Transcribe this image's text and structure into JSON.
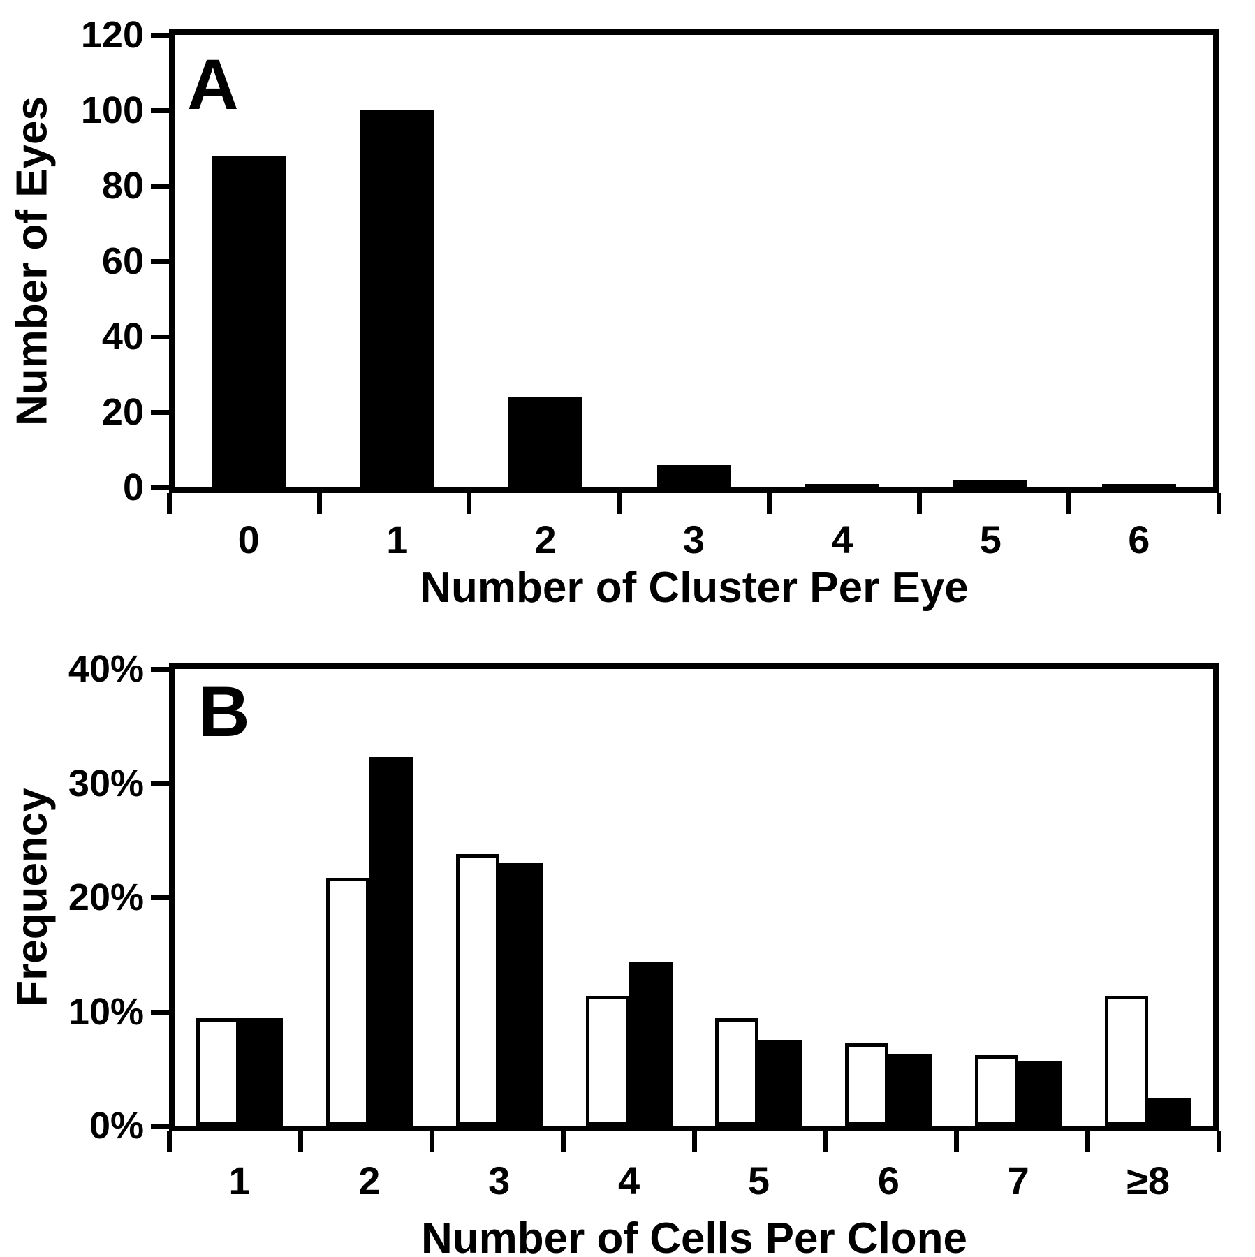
{
  "figure_title": "Two-panel published bar chart figure",
  "panels": {
    "a": {
      "letter": "A",
      "y_title": "Number of Eyes",
      "x_title": "Number of Cluster Per Eye"
    },
    "b": {
      "letter": "B",
      "y_title": "Frequency",
      "x_title": "Number of Cells Per Clone"
    }
  },
  "chart_data": [
    {
      "panel": "A",
      "type": "bar",
      "title": "A",
      "categories": [
        "0",
        "1",
        "2",
        "3",
        "4",
        "5",
        "6"
      ],
      "values": [
        88,
        100,
        24,
        6,
        1,
        2,
        1
      ],
      "xlabel": "Number of Cluster Per Eye",
      "ylabel": "Number of Eyes",
      "ylim": [
        0,
        120
      ],
      "y_ticks": [
        0,
        20,
        40,
        60,
        80,
        100,
        120
      ],
      "y_tick_suffix": "",
      "bar_fill": "#000000",
      "grid": false,
      "legend": "none"
    },
    {
      "panel": "B",
      "type": "bar",
      "title": "B",
      "categories": [
        "1",
        "2",
        "3",
        "4",
        "5",
        "6",
        "7",
        "≥8"
      ],
      "series": [
        {
          "name": "open-white-bars",
          "fill": "#ffffff",
          "values": [
            9.4,
            21.7,
            23.8,
            11.4,
            9.4,
            7.2,
            6.2,
            11.4
          ]
        },
        {
          "name": "filled-black-bars",
          "fill": "#000000",
          "values": [
            9.4,
            32.3,
            23.0,
            14.3,
            7.5,
            6.3,
            5.6,
            2.4
          ]
        }
      ],
      "xlabel": "Number of Cells Per Clone",
      "ylabel": "Frequency",
      "ylim": [
        0,
        40
      ],
      "y_ticks": [
        0,
        10,
        20,
        30,
        40
      ],
      "y_tick_suffix": "%",
      "grid": false,
      "legend": "none"
    }
  ]
}
